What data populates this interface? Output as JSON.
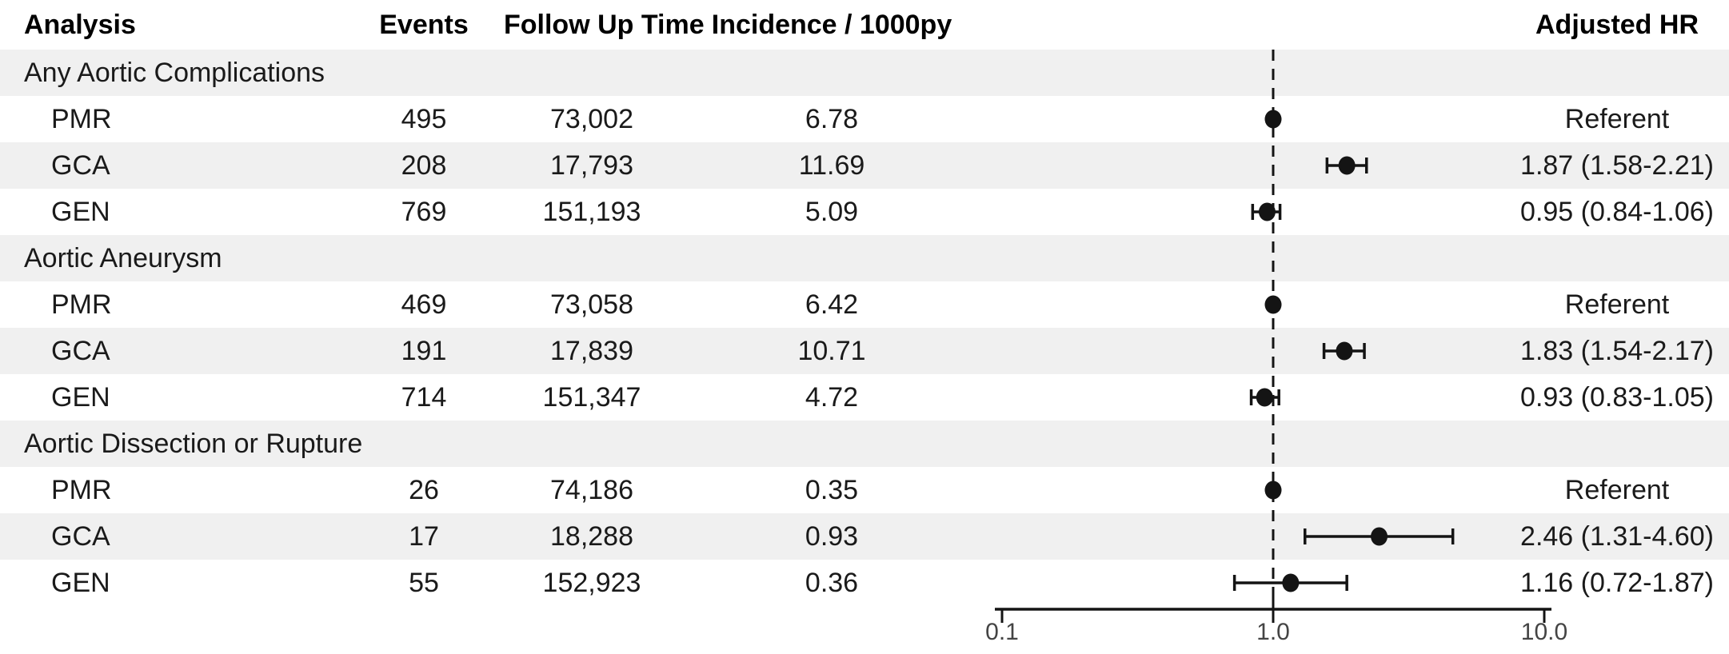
{
  "figure": {
    "background": "#ffffff",
    "band_color": "#f0f0f0",
    "text_color": "#1a1a1a",
    "marker_color": "#141414",
    "axis_label_color": "#444444"
  },
  "header": {
    "analysis": "Analysis",
    "events": "Events",
    "follow_up_time": "Follow Up Time",
    "incidence": "Incidence / 1000py",
    "adjusted_hr": "Adjusted HR"
  },
  "chart_data": {
    "type": "forest",
    "x_scale": "log10",
    "x_ticks": [
      0.1,
      1.0,
      10.0
    ],
    "x_tick_labels": [
      "0.1",
      "1.0",
      "10.0"
    ],
    "reference_line": 1.0,
    "columns": [
      "Analysis",
      "Events",
      "Follow Up Time",
      "Incidence / 1000py",
      "Adjusted HR"
    ],
    "sections": [
      {
        "label": "Any Aortic Complications",
        "rows": [
          {
            "label": "PMR",
            "events": "495",
            "follow_up": "73,002",
            "incidence": "6.78",
            "hr_label": "Referent",
            "hr": 1.0,
            "referent": true
          },
          {
            "label": "GCA",
            "events": "208",
            "follow_up": "17,793",
            "incidence": "11.69",
            "hr_label": "1.87 (1.58-2.21)",
            "hr": 1.87,
            "lo": 1.58,
            "hi": 2.21,
            "referent": false
          },
          {
            "label": "GEN",
            "events": "769",
            "follow_up": "151,193",
            "incidence": "5.09",
            "hr_label": "0.95 (0.84-1.06)",
            "hr": 0.95,
            "lo": 0.84,
            "hi": 1.06,
            "referent": false
          }
        ]
      },
      {
        "label": "Aortic Aneurysm",
        "rows": [
          {
            "label": "PMR",
            "events": "469",
            "follow_up": "73,058",
            "incidence": "6.42",
            "hr_label": "Referent",
            "hr": 1.0,
            "referent": true
          },
          {
            "label": "GCA",
            "events": "191",
            "follow_up": "17,839",
            "incidence": "10.71",
            "hr_label": "1.83 (1.54-2.17)",
            "hr": 1.83,
            "lo": 1.54,
            "hi": 2.17,
            "referent": false
          },
          {
            "label": "GEN",
            "events": "714",
            "follow_up": "151,347",
            "incidence": "4.72",
            "hr_label": "0.93 (0.83-1.05)",
            "hr": 0.93,
            "lo": 0.83,
            "hi": 1.05,
            "referent": false
          }
        ]
      },
      {
        "label": "Aortic Dissection or Rupture",
        "rows": [
          {
            "label": "PMR",
            "events": "26",
            "follow_up": "74,186",
            "incidence": "0.35",
            "hr_label": "Referent",
            "hr": 1.0,
            "referent": true
          },
          {
            "label": "GCA",
            "events": "17",
            "follow_up": "18,288",
            "incidence": "0.93",
            "hr_label": "2.46 (1.31-4.60)",
            "hr": 2.46,
            "lo": 1.31,
            "hi": 4.6,
            "referent": false
          },
          {
            "label": "GEN",
            "events": "55",
            "follow_up": "152,923",
            "incidence": "0.36",
            "hr_label": "1.16 (0.72-1.87)",
            "hr": 1.16,
            "lo": 0.72,
            "hi": 1.87,
            "referent": false
          }
        ]
      }
    ]
  }
}
